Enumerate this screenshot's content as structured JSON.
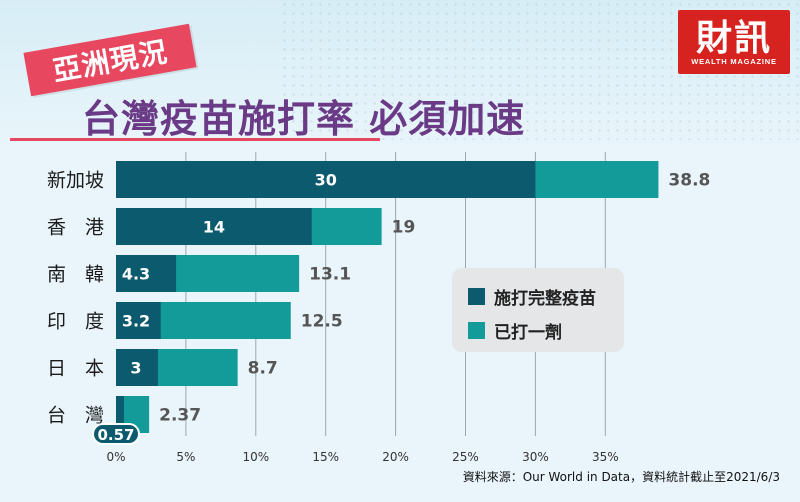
{
  "tag": "亞洲現況",
  "title": "台灣疫苗施打率 必須加速",
  "logo": {
    "cn": "財訊",
    "en": "WEALTH MAGAZINE"
  },
  "source": "資料來源：Our World in Data，資料統計截止至2021/6/3",
  "legend": [
    {
      "label": "施打完整疫苗",
      "color": "#0c5a6e"
    },
    {
      "label": "已打一劑",
      "color": "#139b9a"
    }
  ],
  "chart_data": {
    "type": "bar",
    "orientation": "horizontal",
    "categories": [
      "新加坡",
      "香　港",
      "南　韓",
      "印　度",
      "日　本",
      "台　灣"
    ],
    "series": [
      {
        "name": "施打完整疫苗",
        "values": [
          30,
          14,
          4.3,
          3.2,
          3,
          0.57
        ],
        "labels": [
          "30",
          "14",
          "4.3",
          "3.2",
          "3",
          "0.57"
        ]
      },
      {
        "name": "已打一劑",
        "values": [
          38.8,
          19,
          13.1,
          12.5,
          8.7,
          2.37
        ],
        "labels": [
          "38.8",
          "19",
          "13.1",
          "12.5",
          "8.7",
          "2.37"
        ]
      }
    ],
    "xlim": [
      0,
      40
    ],
    "xticks": [
      0,
      5,
      10,
      15,
      20,
      25,
      30,
      35
    ],
    "tick_labels": [
      "0%",
      "5%",
      "10%",
      "15%",
      "20%",
      "25%",
      "30%",
      "35%"
    ],
    "grid": true,
    "legend_position": "right"
  }
}
